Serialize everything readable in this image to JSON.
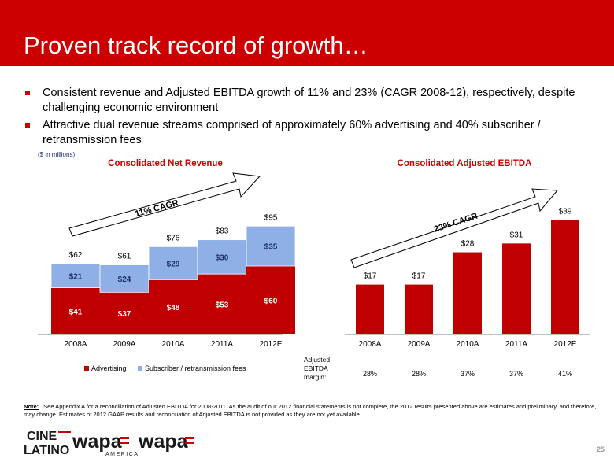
{
  "slide": {
    "title": "Proven track record of growth…",
    "bullets": [
      "Consistent revenue and Adjusted EBITDA growth of 11% and 23% (CAGR 2008-12), respectively, despite challenging economic environment",
      "Attractive dual revenue streams comprised of approximately 60% advertising and 40% subscriber / retransmission fees"
    ],
    "units": "($ in millions)",
    "note_label": "Note:",
    "note_text": "See Appendix A for a reconciliation of Adjusted  EBITDA for 2008-2011.  As the audit of our 2012 financial statements is not complete, the 2012 results presented above are estimates and preliminary, and therefore, may change. Estimates of 2012 GAAP results and reconciliation of Adjusted EBITDA is not provided as they are not yet available.",
    "page_number": "25",
    "margin_label_lines": [
      "Adjusted",
      "EBITDA",
      "margin:"
    ],
    "margins": [
      "28%",
      "28%",
      "37%",
      "37%",
      "41%"
    ],
    "logos": {
      "cine_latino_top": "CINE",
      "cine_latino_bottom": "LATINO",
      "wapa_america": "wapa",
      "wapa_america_sub": "AMERICA",
      "wapa": "wapa"
    },
    "colors": {
      "brand_red": "#cc0000",
      "advertising": "#c00000",
      "subscriber": "#8fb0e6",
      "navy": "#1f2f6b"
    }
  },
  "chart_data": [
    {
      "type": "bar",
      "stacked": true,
      "title": "Consolidated Net Revenue",
      "categories": [
        "2008A",
        "2009A",
        "2010A",
        "2011A",
        "2012E"
      ],
      "series": [
        {
          "name": "Advertising",
          "values": [
            41,
            37,
            48,
            53,
            60
          ],
          "labels": [
            "$41",
            "$37",
            "$48",
            "$53",
            "$60"
          ]
        },
        {
          "name": "Subscriber / retransmission fees",
          "values": [
            21,
            24,
            29,
            30,
            35
          ],
          "labels": [
            "$21",
            "$24",
            "$29",
            "$30",
            "$35"
          ]
        }
      ],
      "totals": [
        62,
        61,
        76,
        83,
        95
      ],
      "total_labels": [
        "$62",
        "$61",
        "$76",
        "$83",
        "$95"
      ],
      "ylim": [
        0,
        100
      ],
      "legend": "bottom",
      "annotation": "11% CAGR"
    },
    {
      "type": "bar",
      "title": "Consolidated Adjusted EBITDA",
      "categories": [
        "2008A",
        "2009A",
        "2010A",
        "2011A",
        "2012E"
      ],
      "values": [
        17,
        17,
        28,
        31,
        39
      ],
      "labels": [
        "$17",
        "$17",
        "$28",
        "$31",
        "$39"
      ],
      "ylim": [
        0,
        40
      ],
      "annotation": "23% CAGR"
    }
  ]
}
